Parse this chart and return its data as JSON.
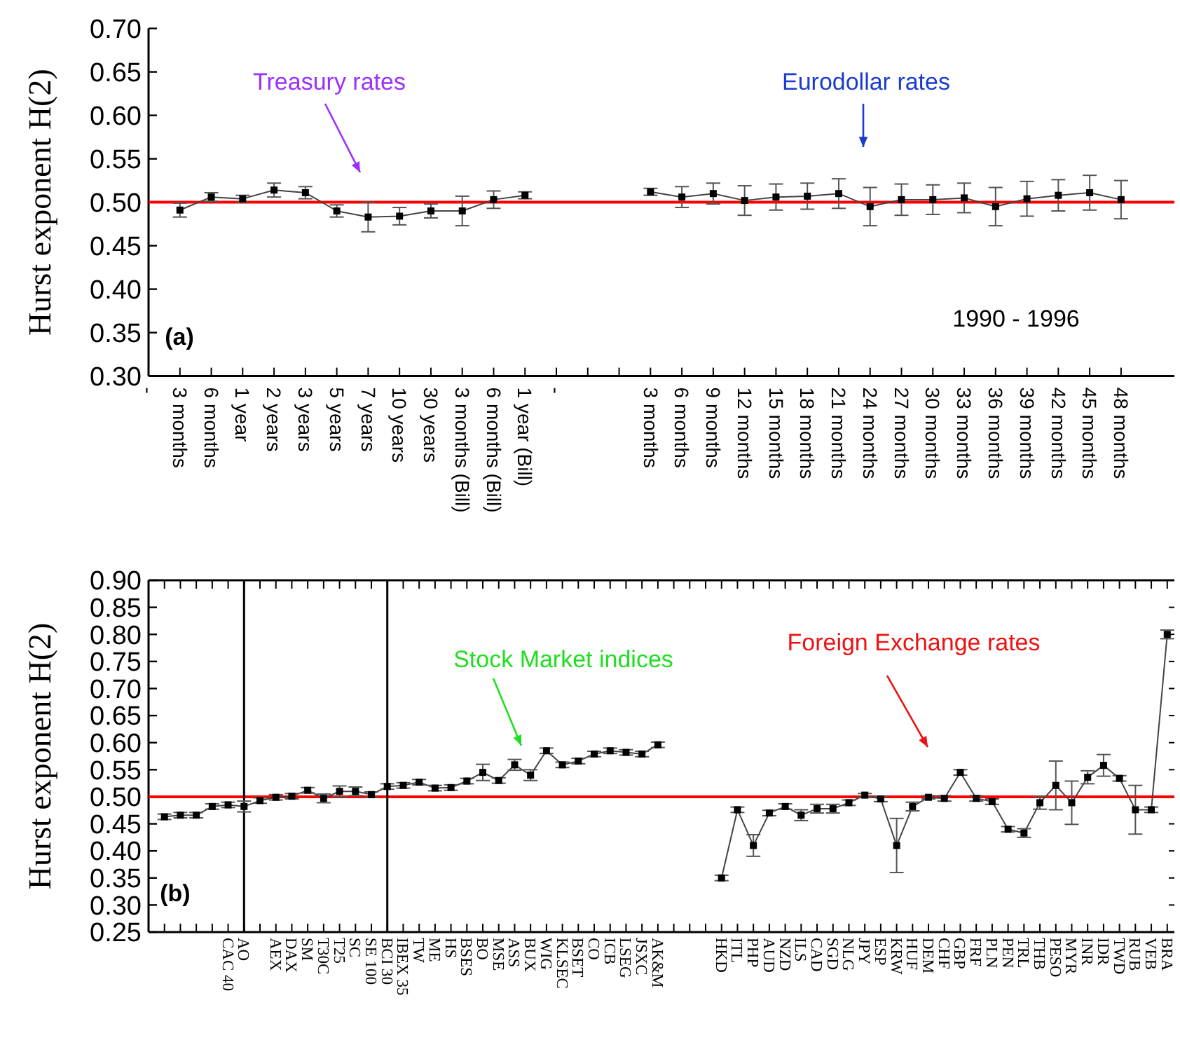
{
  "chart_data": [
    {
      "type": "line",
      "ylabel": "Hurst exponent H(2)",
      "marker": "square",
      "grid": false,
      "categories": [
        "-",
        "3 months",
        "6 months",
        "1 year",
        "2 years",
        "3 years",
        "5 years",
        "7 years",
        "10 years",
        "30 years",
        "3 months (Bill)",
        "6 months (Bill)",
        "1 year (Bill)",
        "-",
        null,
        null,
        "3 months",
        "6 months",
        "9 months",
        "12 months",
        "15 months",
        "18 months",
        "21 months",
        "24 months",
        "27 months",
        "30 months",
        "33 months",
        "36 months",
        "39 months",
        "42 months",
        "45 months",
        "48 months"
      ],
      "series": [
        {
          "color": "#000000",
          "values": [
            null,
            0.491,
            0.506,
            0.504,
            0.514,
            0.511,
            0.49,
            0.483,
            0.484,
            0.49,
            0.49,
            0.503,
            0.508,
            null,
            null,
            null,
            0.512,
            0.506,
            0.51,
            0.502,
            0.506,
            0.507,
            0.51,
            0.495,
            0.503,
            0.503,
            0.505,
            0.495,
            0.504,
            0.508,
            0.511,
            0.503
          ],
          "errors": [
            null,
            0.008,
            0.005,
            0.004,
            0.008,
            0.007,
            0.007,
            0.017,
            0.01,
            0.008,
            0.017,
            0.01,
            0.004,
            null,
            null,
            null,
            0.004,
            0.012,
            0.012,
            0.017,
            0.015,
            0.015,
            0.017,
            0.022,
            0.018,
            0.017,
            0.017,
            0.022,
            0.02,
            0.018,
            0.02,
            0.022
          ]
        }
      ],
      "ylim": [
        0.3,
        0.7
      ],
      "yticks": [
        {
          "value": 0.3,
          "label": "0.30"
        },
        {
          "value": 0.35,
          "label": "0.35"
        },
        {
          "value": 0.4,
          "label": "0.40"
        },
        {
          "value": 0.45,
          "label": "0.45"
        },
        {
          "value": 0.5,
          "label": "0.50"
        },
        {
          "value": 0.55,
          "label": "0.55"
        },
        {
          "value": 0.6,
          "label": "0.60"
        },
        {
          "value": 0.65,
          "label": "0.65"
        },
        {
          "value": 0.7,
          "label": "0.70"
        }
      ],
      "ref_lines": [
        {
          "axis": "y",
          "value": 0.5,
          "color": "#ff0000"
        }
      ],
      "annotations": [
        "Treasury rates",
        "Eurodollar rates",
        "1990 - 1996",
        "(a)"
      ]
    },
    {
      "type": "line",
      "ylabel": "Hurst exponent H(2)",
      "marker": "square",
      "grid": false,
      "categories": [
        null,
        null,
        null,
        null,
        "CAC 40",
        "AO",
        null,
        "AEX",
        "DAX",
        "SM",
        "T30C",
        "T25",
        "SC",
        "SE 100",
        "BCI 30",
        "IBEX 35",
        "TW",
        "ME",
        "HS",
        "BSES",
        "BO",
        "MSE",
        "ASS",
        "BUX",
        "WIG",
        "KLSEC",
        "BSET",
        "CO",
        "ICB",
        "LSEG",
        "JSXC",
        "AK&M",
        null,
        null,
        null,
        "HKD",
        "ITL",
        "PHP",
        "AUD",
        "NZD",
        "ILS",
        "CAD",
        "SGD",
        "NLG",
        "JPY",
        "ESP",
        "KRW",
        "HUF",
        "DEM",
        "CHF",
        "GBP",
        "FRF",
        "PLN",
        "PEN",
        "TRL",
        "THB",
        "PESO",
        "MYR",
        "INR",
        "IDR",
        "TWD",
        "RUB",
        "VEB",
        "BRA"
      ],
      "series": [
        {
          "color": "#000000",
          "values": [
            0.463,
            0.466,
            0.466,
            0.482,
            0.485,
            0.482,
            0.493,
            0.499,
            0.501,
            0.512,
            0.497,
            0.51,
            0.51,
            0.504,
            0.519,
            0.521,
            0.527,
            0.516,
            0.517,
            0.529,
            0.545,
            0.53,
            0.559,
            0.54,
            0.585,
            0.559,
            0.566,
            0.579,
            0.585,
            0.582,
            0.579,
            0.596,
            null,
            null,
            null,
            0.35,
            0.476,
            0.41,
            0.47,
            0.482,
            0.466,
            0.478,
            0.478,
            0.489,
            0.503,
            0.496,
            0.41,
            0.482,
            0.499,
            0.497,
            0.545,
            0.497,
            0.491,
            0.44,
            0.433,
            0.489,
            0.521,
            0.489,
            0.536,
            0.558,
            0.534,
            0.476,
            0.476,
            0.8
          ],
          "errors": [
            0.005,
            0.005,
            0.005,
            0.005,
            0.005,
            0.01,
            0.005,
            0.005,
            0.005,
            0.005,
            0.008,
            0.01,
            0.008,
            0.005,
            0.005,
            0.005,
            0.005,
            0.005,
            0.005,
            0.005,
            0.015,
            0.005,
            0.01,
            0.01,
            0.005,
            0.005,
            0.005,
            0.005,
            0.005,
            0.005,
            0.005,
            0.005,
            null,
            null,
            null,
            0.005,
            0.005,
            0.02,
            0.005,
            0.005,
            0.01,
            0.008,
            0.008,
            0.005,
            0.003,
            0.005,
            0.05,
            0.008,
            0.003,
            0.005,
            0.005,
            0.005,
            0.005,
            0.005,
            0.008,
            0.012,
            0.045,
            0.04,
            0.012,
            0.02,
            0.005,
            0.045,
            0.005,
            0.008
          ]
        }
      ],
      "ylim": [
        0.25,
        0.9
      ],
      "yticks": [
        {
          "value": 0.25,
          "label": "0.25"
        },
        {
          "value": 0.3,
          "label": "0.30"
        },
        {
          "value": 0.35,
          "label": "0.35"
        },
        {
          "value": 0.4,
          "label": "0.40"
        },
        {
          "value": 0.45,
          "label": "0.45"
        },
        {
          "value": 0.5,
          "label": "0.50"
        },
        {
          "value": 0.55,
          "label": "0.55"
        },
        {
          "value": 0.6,
          "label": "0.60"
        },
        {
          "value": 0.65,
          "label": "0.65"
        },
        {
          "value": 0.7,
          "label": "0.70"
        },
        {
          "value": 0.75,
          "label": "0.75"
        },
        {
          "value": 0.8,
          "label": "0.80"
        },
        {
          "value": 0.85,
          "label": "0.85"
        },
        {
          "value": 0.9,
          "label": "0.90"
        }
      ],
      "ref_lines": [
        {
          "axis": "y",
          "value": 0.5,
          "color": "#ff0000"
        },
        {
          "axis": "x",
          "value": "AO",
          "color": "#000000"
        },
        {
          "axis": "x",
          "value": "BCI 30",
          "color": "#000000"
        }
      ],
      "annotations": [
        "Stock Market indices",
        "Foreign Exchange rates",
        "(b)"
      ]
    }
  ]
}
